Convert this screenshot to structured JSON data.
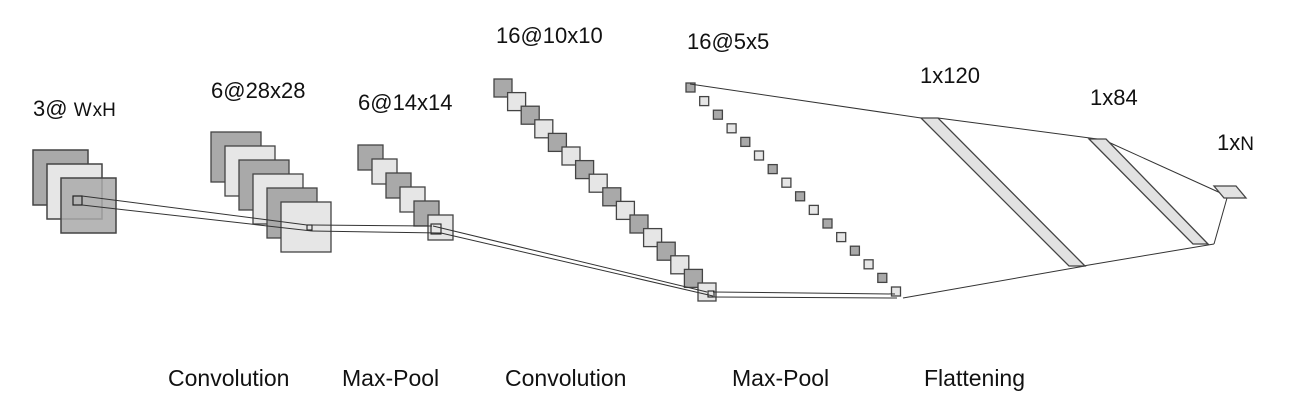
{
  "layers": [
    {
      "id": "input",
      "label_parts": [
        "3@ ",
        "W",
        "x",
        "H"
      ]
    },
    {
      "id": "conv1",
      "label": "6@28x28"
    },
    {
      "id": "pool1",
      "label": "6@14x14"
    },
    {
      "id": "conv2",
      "label": "16@10x10"
    },
    {
      "id": "pool2",
      "label": "16@5x5"
    },
    {
      "id": "fc1",
      "label": "1x120"
    },
    {
      "id": "fc2",
      "label": "1x84"
    },
    {
      "id": "output",
      "label_parts": [
        "1x",
        "N"
      ]
    }
  ],
  "operations": [
    "Convolution",
    "Max-Pool",
    "Convolution",
    "Max-Pool",
    "Flattening"
  ],
  "colors": {
    "dark": "#a9a9a9",
    "light": "#e6e6e6",
    "stroke": "#444444",
    "line": "#333333",
    "fc_fill": "#e2e2e2"
  }
}
